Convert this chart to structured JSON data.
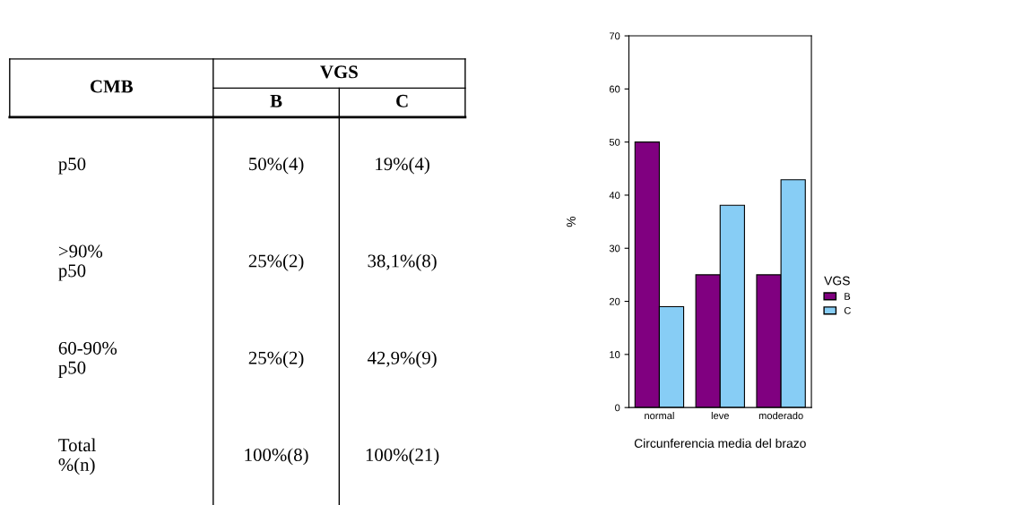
{
  "chart_data": [
    {
      "type": "other",
      "ylabel": "CMB",
      "legend_title": "VGS",
      "categories": [
        "B",
        "C"
      ],
      "y_categories": [
        "p50",
        ">90%\np50",
        "60-90%\np50",
        "Total\n%(n)"
      ],
      "cell_labels": [
        [
          "50%(4)",
          "19%(4)"
        ],
        [
          "25%(2)",
          "38,1%(8)"
        ],
        [
          "25%(2)",
          "42,9%(9)"
        ],
        [
          "100%(8)",
          "100%(21)"
        ]
      ]
    },
    {
      "type": "bar",
      "categories": [
        "normal",
        "leve",
        "moderado"
      ],
      "xlabel": "Circunferencia media del brazo",
      "ylabel": "%",
      "ylim": [
        0,
        70
      ],
      "yticks": [
        0,
        10,
        20,
        30,
        40,
        50,
        60,
        70
      ],
      "legend": "right",
      "legend_title": "VGS",
      "grid": false,
      "series": [
        {
          "name": "B",
          "color": "#800080",
          "values": [
            50,
            25,
            25
          ]
        },
        {
          "name": "C",
          "color": "#87cdf5",
          "values": [
            19,
            38.1,
            42.9
          ]
        }
      ]
    }
  ]
}
